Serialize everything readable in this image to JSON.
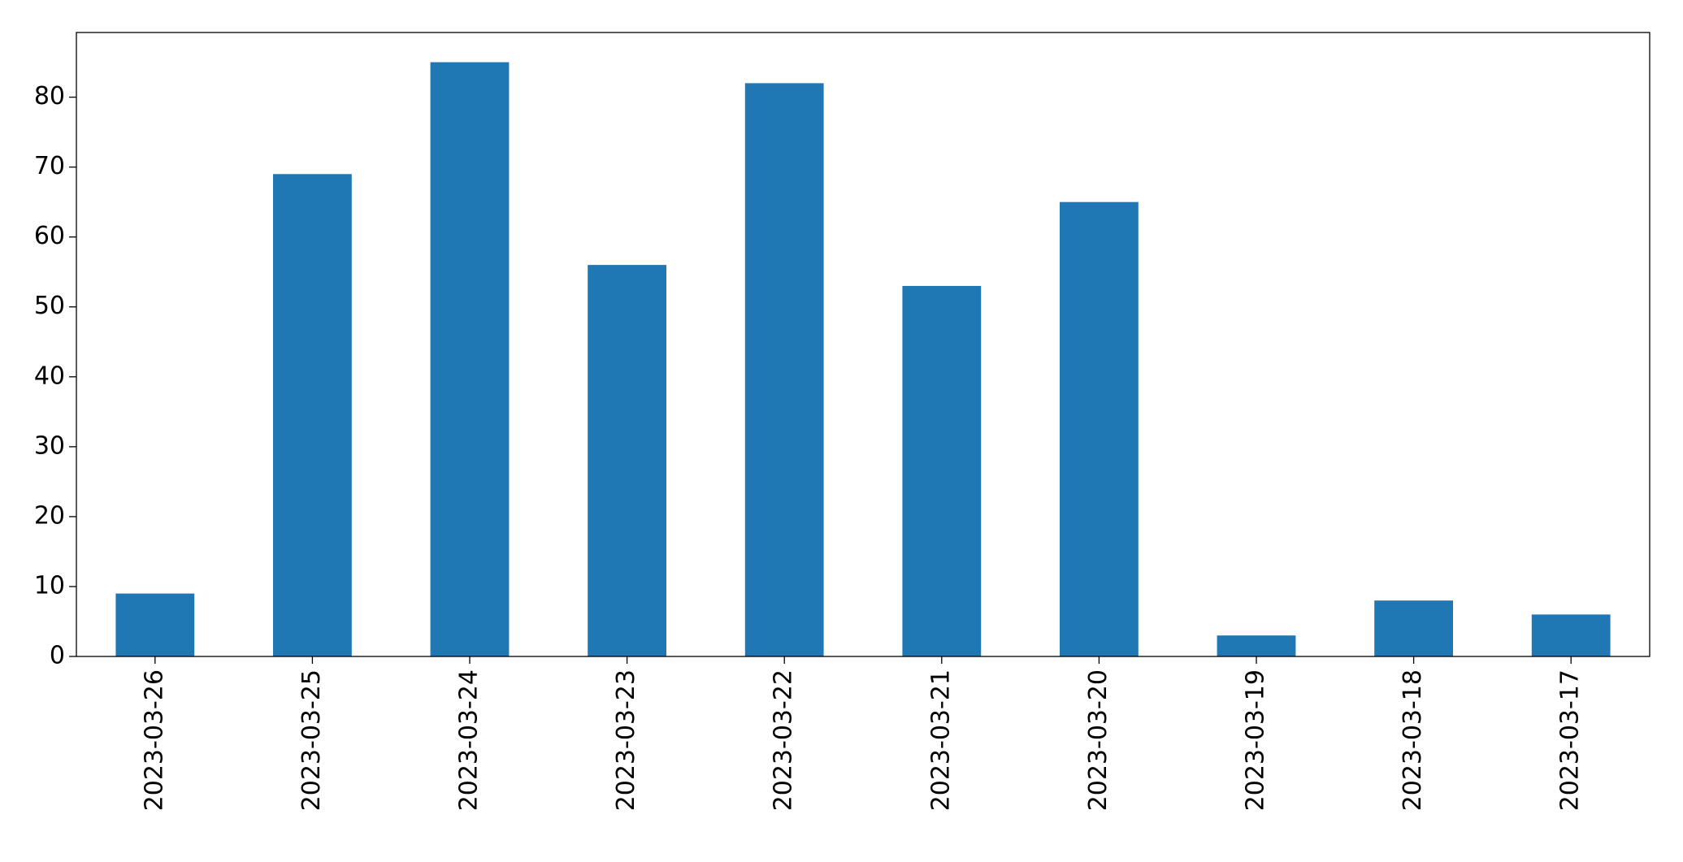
{
  "chart_data": {
    "type": "bar",
    "categories": [
      "2023-03-26",
      "2023-03-25",
      "2023-03-24",
      "2023-03-23",
      "2023-03-22",
      "2023-03-21",
      "2023-03-20",
      "2023-03-19",
      "2023-03-18",
      "2023-03-17"
    ],
    "values": [
      9,
      69,
      85,
      56,
      82,
      53,
      65,
      3,
      8,
      6
    ],
    "color": "#1f77b4",
    "ylim": [
      0,
      89.25
    ],
    "yticks": [
      0,
      10,
      20,
      30,
      40,
      50,
      60,
      70,
      80
    ],
    "grid": false
  }
}
